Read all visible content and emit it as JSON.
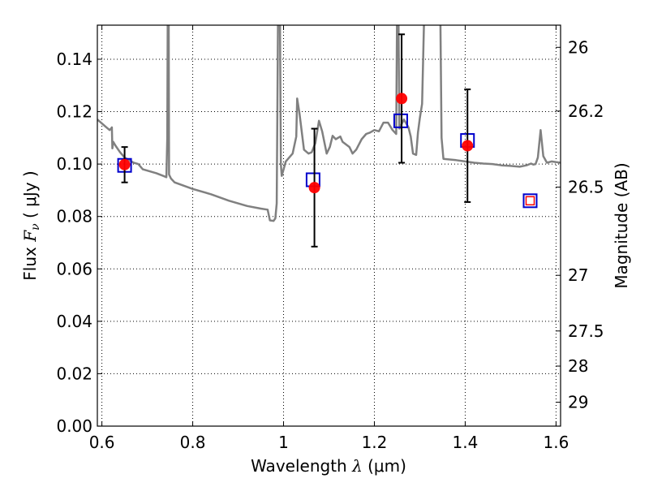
{
  "chart_data": {
    "type": "scatter",
    "xlabel": {
      "prefix": "Wavelength",
      "symbol": "λ",
      "unit": "(μm)"
    },
    "ylabel": {
      "prefix": "Flux",
      "symbol": "F",
      "subscript": "ν",
      "unit": "( μJy )"
    },
    "y2label": "Magnitude (AB)",
    "xlim": [
      0.59,
      1.61
    ],
    "ylim": [
      0.0,
      0.153
    ],
    "grid": true,
    "x_ticks": [
      {
        "value": 0.6,
        "label": "0.6"
      },
      {
        "value": 0.8,
        "label": "0.8"
      },
      {
        "value": 1.0,
        "label": "1"
      },
      {
        "value": 1.2,
        "label": "1.2"
      },
      {
        "value": 1.4,
        "label": "1.4"
      },
      {
        "value": 1.6,
        "label": "1.6"
      }
    ],
    "y_ticks": [
      {
        "value": 0.0,
        "label": "0.00"
      },
      {
        "value": 0.02,
        "label": "0.02"
      },
      {
        "value": 0.04,
        "label": "0.04"
      },
      {
        "value": 0.06,
        "label": "0.06"
      },
      {
        "value": 0.08,
        "label": "0.08"
      },
      {
        "value": 0.1,
        "label": "0.10"
      },
      {
        "value": 0.12,
        "label": "0.12"
      },
      {
        "value": 0.14,
        "label": "0.14"
      }
    ],
    "y2_ticks": [
      {
        "value": 26,
        "label": "26"
      },
      {
        "value": 26.2,
        "label": "26.2"
      },
      {
        "value": 26.5,
        "label": "26.5"
      },
      {
        "value": 27,
        "label": "27"
      },
      {
        "value": 27.5,
        "label": "27.5"
      },
      {
        "value": 28,
        "label": "28"
      },
      {
        "value": 29,
        "label": "29"
      }
    ],
    "series": [
      {
        "kind": "model_spectrum",
        "color": "#808080",
        "points": [
          [
            0.59,
            0.117
          ],
          [
            0.6,
            0.1155
          ],
          [
            0.61,
            0.114
          ],
          [
            0.617,
            0.113
          ],
          [
            0.62,
            0.1135
          ],
          [
            0.622,
            0.114
          ],
          [
            0.623,
            0.106
          ],
          [
            0.625,
            0.1085
          ],
          [
            0.63,
            0.107
          ],
          [
            0.64,
            0.1045
          ],
          [
            0.65,
            0.1025
          ],
          [
            0.66,
            0.1015
          ],
          [
            0.67,
            0.1005
          ],
          [
            0.68,
            0.1
          ],
          [
            0.69,
            0.098
          ],
          [
            0.7,
            0.0975
          ],
          [
            0.72,
            0.0965
          ],
          [
            0.735,
            0.0955
          ],
          [
            0.742,
            0.095
          ],
          [
            0.744,
            0.11
          ],
          [
            0.745,
            0.16
          ],
          [
            0.747,
            0.16
          ],
          [
            0.748,
            0.096
          ],
          [
            0.752,
            0.0945
          ],
          [
            0.76,
            0.093
          ],
          [
            0.8,
            0.0905
          ],
          [
            0.84,
            0.0885
          ],
          [
            0.88,
            0.086
          ],
          [
            0.92,
            0.084
          ],
          [
            0.95,
            0.083
          ],
          [
            0.965,
            0.0826
          ],
          [
            0.97,
            0.0785
          ],
          [
            0.978,
            0.0783
          ],
          [
            0.982,
            0.0793
          ],
          [
            0.985,
            0.085
          ],
          [
            0.988,
            0.16
          ],
          [
            0.992,
            0.16
          ],
          [
            0.994,
            0.1
          ],
          [
            0.996,
            0.0955
          ],
          [
            1.005,
            0.101
          ],
          [
            1.02,
            0.104
          ],
          [
            1.028,
            0.1105
          ],
          [
            1.03,
            0.125
          ],
          [
            1.035,
            0.1195
          ],
          [
            1.045,
            0.1055
          ],
          [
            1.055,
            0.104
          ],
          [
            1.062,
            0.1045
          ],
          [
            1.07,
            0.108
          ],
          [
            1.078,
            0.1165
          ],
          [
            1.085,
            0.1125
          ],
          [
            1.095,
            0.104
          ],
          [
            1.102,
            0.1065
          ],
          [
            1.108,
            0.1108
          ],
          [
            1.115,
            0.1095
          ],
          [
            1.125,
            0.1105
          ],
          [
            1.13,
            0.1085
          ],
          [
            1.145,
            0.1065
          ],
          [
            1.152,
            0.104
          ],
          [
            1.16,
            0.1055
          ],
          [
            1.172,
            0.1095
          ],
          [
            1.182,
            0.1115
          ],
          [
            1.19,
            0.112
          ],
          [
            1.2,
            0.113
          ],
          [
            1.21,
            0.1125
          ],
          [
            1.22,
            0.1158
          ],
          [
            1.23,
            0.1158
          ],
          [
            1.24,
            0.113
          ],
          [
            1.248,
            0.1115
          ],
          [
            1.25,
            0.16
          ],
          [
            1.253,
            0.16
          ],
          [
            1.255,
            0.1135
          ],
          [
            1.265,
            0.117
          ],
          [
            1.275,
            0.114
          ],
          [
            1.28,
            0.1105
          ],
          [
            1.285,
            0.104
          ],
          [
            1.292,
            0.1035
          ],
          [
            1.296,
            0.112
          ],
          [
            1.3,
            0.1175
          ],
          [
            1.305,
            0.123
          ],
          [
            1.31,
            0.16
          ],
          [
            1.345,
            0.16
          ],
          [
            1.348,
            0.11
          ],
          [
            1.352,
            0.102
          ],
          [
            1.38,
            0.1015
          ],
          [
            1.4,
            0.101
          ],
          [
            1.42,
            0.1005
          ],
          [
            1.44,
            0.1002
          ],
          [
            1.46,
            0.1
          ],
          [
            1.48,
            0.0995
          ],
          [
            1.5,
            0.0993
          ],
          [
            1.52,
            0.099
          ],
          [
            1.535,
            0.0995
          ],
          [
            1.545,
            0.1002
          ],
          [
            1.55,
            0.0998
          ],
          [
            1.555,
            0.1
          ],
          [
            1.56,
            0.1025
          ],
          [
            1.566,
            0.113
          ],
          [
            1.572,
            0.103
          ],
          [
            1.58,
            0.1005
          ],
          [
            1.59,
            0.101
          ],
          [
            1.61,
            0.1005
          ]
        ]
      },
      {
        "kind": "model_photometry_squares",
        "color": "#0000cc",
        "points": [
          [
            0.65,
            0.0995
          ],
          [
            1.065,
            0.094
          ],
          [
            1.258,
            0.1165
          ],
          [
            1.405,
            0.109
          ],
          [
            1.543,
            0.086
          ]
        ]
      },
      {
        "kind": "observed_points",
        "color": "#ff0000",
        "points": [
          {
            "x": 0.65,
            "y": 0.0998,
            "err": [
              0.093,
              0.1065
            ]
          },
          {
            "x": 1.068,
            "y": 0.091,
            "err": [
              0.0685,
              0.1135
            ]
          },
          {
            "x": 1.26,
            "y": 0.125,
            "err": [
              0.1005,
              0.1495
            ]
          },
          {
            "x": 1.405,
            "y": 0.107,
            "err": [
              0.0855,
              0.1285
            ]
          }
        ]
      },
      {
        "kind": "upper_limit_square",
        "color": "#ff0000",
        "points": [
          [
            1.543,
            0.086
          ]
        ]
      }
    ]
  }
}
